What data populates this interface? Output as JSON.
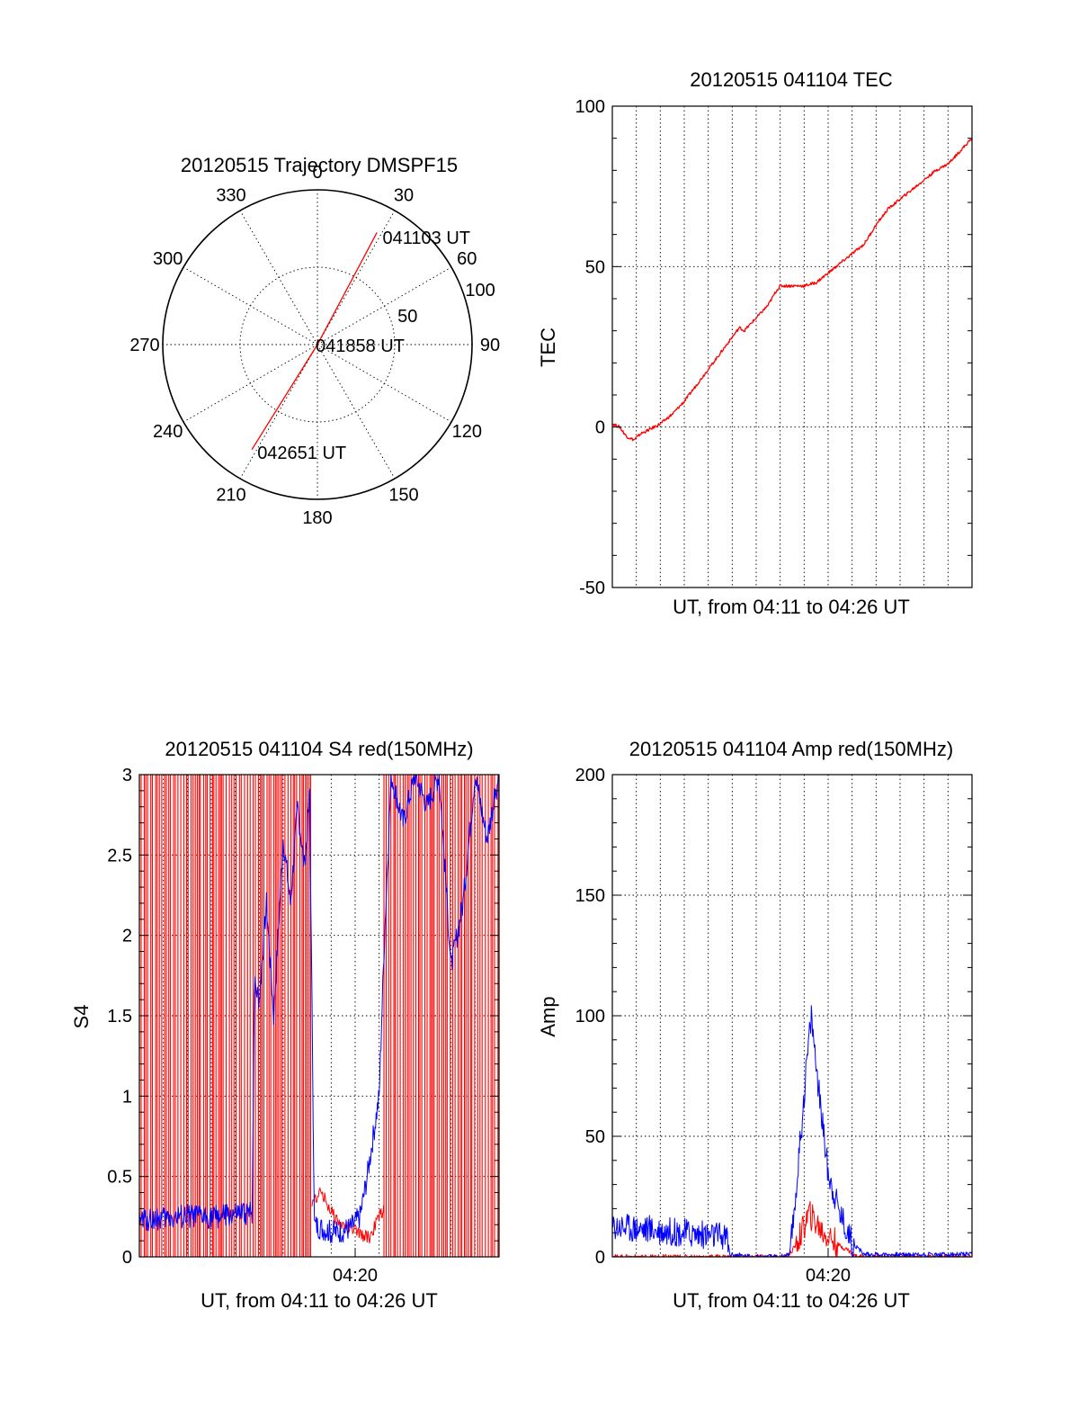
{
  "colors": {
    "red": "#ff0000",
    "blue": "#0000ff",
    "axis": "#000000",
    "background": "#ffffff"
  },
  "chart_data": [
    {
      "id": "trajectory",
      "type": "polar",
      "title": "20120515 Trajectory DMSPF15",
      "angle_labels": [
        "0",
        "30",
        "60",
        "90",
        "120",
        "150",
        "180",
        "210",
        "240",
        "270",
        "300",
        "330"
      ],
      "radius_labels": [
        "50",
        "100"
      ],
      "rmax": 100,
      "track": {
        "start_angle": 28,
        "start_r": 82,
        "end_angle": 212,
        "end_r": 80,
        "through_center": true
      },
      "annotations": [
        {
          "text": "041103 UT",
          "angle": 30,
          "r": 82
        },
        {
          "text": "041858 UT",
          "angle": 0,
          "r": 0
        },
        {
          "text": "042651 UT",
          "angle": 210,
          "r": 80
        }
      ]
    },
    {
      "id": "tec",
      "type": "line",
      "title": "20120515 041104 TEC",
      "xlabel": "UT, from 04:11 to 04:26 UT",
      "ylabel": "TEC",
      "xlim": [
        0,
        15
      ],
      "ylim": [
        -50,
        100
      ],
      "yticks": [
        "-50",
        "0",
        "50",
        "100"
      ],
      "xgrid_count": 15,
      "series": [
        {
          "color": "red",
          "x": [
            0,
            0.3,
            0.6,
            0.9,
            1.2,
            1.5,
            2.0,
            2.5,
            3.0,
            3.5,
            4.0,
            4.5,
            5.0,
            5.3,
            5.5,
            6.0,
            6.5,
            6.8,
            7.0,
            7.5,
            8.0,
            8.5,
            9.0,
            9.5,
            10.0,
            10.5,
            11.0,
            11.5,
            12.0,
            12.5,
            13.0,
            13.5,
            14.0,
            14.5,
            15.0
          ],
          "y": [
            1,
            0,
            -3,
            -4,
            -2,
            -1,
            1,
            4,
            8,
            13,
            18,
            23,
            28,
            31,
            30,
            34,
            38,
            42,
            44,
            44,
            44,
            45,
            48,
            51,
            54,
            57,
            63,
            68,
            71,
            74,
            77,
            80,
            82,
            86,
            90
          ]
        }
      ]
    },
    {
      "id": "s4",
      "type": "line",
      "title": "20120515 041104 S4 red(150MHz)",
      "xlabel": "UT, from 04:11 to 04:26 UT",
      "ylabel": "S4",
      "xlim": [
        0,
        15
      ],
      "ylim": [
        0,
        3
      ],
      "yticks": [
        "0",
        "0.5",
        "1",
        "1.5",
        "2",
        "2.5",
        "3"
      ],
      "xtick_labels": [
        {
          "x": 9,
          "label": "04:20"
        }
      ],
      "xgrid_count": 15,
      "series": [
        {
          "color": "red",
          "style": "saturated-spikes",
          "spike_zones": [
            [
              0,
              7.2
            ],
            [
              10.2,
              15
            ]
          ],
          "quiet_x": [
            7.2,
            7.6,
            8.0,
            8.4,
            8.8,
            9.2,
            9.6,
            10.0,
            10.2
          ],
          "quiet_y": [
            0.35,
            0.4,
            0.28,
            0.2,
            0.18,
            0.14,
            0.12,
            0.25,
            0.3
          ]
        },
        {
          "color": "blue",
          "x": [
            0,
            1,
            2,
            3,
            4,
            4.7,
            4.8,
            5.0,
            5.3,
            5.6,
            6.0,
            6.3,
            6.6,
            6.9,
            7.1,
            7.3,
            7.6,
            8.0,
            8.4,
            8.8,
            9.2,
            9.5,
            9.8,
            10.0,
            10.2,
            10.5,
            11.0,
            11.5,
            12.0,
            12.5,
            13.0,
            13.5,
            14.0,
            14.5,
            15.0
          ],
          "y": [
            0.23,
            0.24,
            0.25,
            0.25,
            0.26,
            0.27,
            1.7,
            1.6,
            2.2,
            1.5,
            2.6,
            2.2,
            2.8,
            2.4,
            2.9,
            0.2,
            0.18,
            0.15,
            0.16,
            0.18,
            0.25,
            0.5,
            0.8,
            1.0,
            1.9,
            3.0,
            2.7,
            3.0,
            2.8,
            3.0,
            1.8,
            2.2,
            3.0,
            2.6,
            3.0
          ]
        }
      ]
    },
    {
      "id": "amp",
      "type": "line",
      "title": "20120515 041104 Amp red(150MHz)",
      "xlabel": "UT, from 04:11 to 04:26 UT",
      "ylabel": "Amp",
      "xlim": [
        0,
        15
      ],
      "ylim": [
        0,
        200
      ],
      "yticks": [
        "0",
        "50",
        "100",
        "150",
        "200"
      ],
      "xtick_labels": [
        {
          "x": 9,
          "label": "04:20"
        }
      ],
      "xgrid_count": 15,
      "series": [
        {
          "color": "red",
          "x": [
            0,
            7.3,
            7.6,
            7.9,
            8.2,
            8.5,
            8.8,
            9.1,
            9.4,
            9.8,
            10.2,
            15
          ],
          "y": [
            0,
            0,
            4,
            10,
            18,
            14,
            10,
            8,
            5,
            3,
            0,
            0
          ]
        },
        {
          "color": "blue",
          "x": [
            0,
            1,
            2,
            3,
            4,
            4.8,
            4.9,
            6.0,
            7.0,
            7.4,
            7.6,
            7.9,
            8.1,
            8.3,
            8.6,
            9.0,
            9.5,
            10.0,
            10.5,
            11,
            12,
            13,
            14,
            15
          ],
          "y": [
            13,
            12,
            11,
            10,
            9,
            8,
            1,
            0,
            0,
            1,
            20,
            55,
            80,
            100,
            70,
            35,
            18,
            6,
            1,
            1,
            1,
            1,
            1,
            1
          ]
        }
      ]
    }
  ]
}
